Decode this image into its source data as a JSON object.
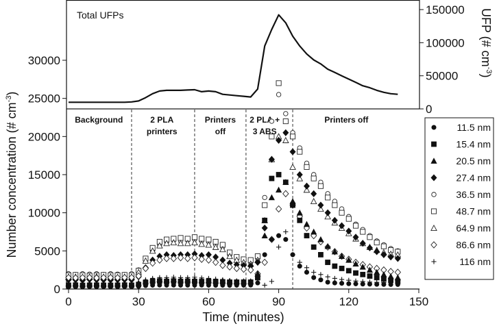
{
  "chart_data": [
    {
      "type": "line",
      "title": "Total UFPs",
      "ylabel_parts": [
        "UFP (# cm",
        "-3",
        ")"
      ],
      "ylim": [
        0,
        150000
      ],
      "yticks": [
        "0",
        "50000",
        "100000",
        "150000"
      ],
      "yticks_values": [
        0,
        50000,
        100000,
        150000
      ],
      "axis_side": "right",
      "x": [
        0,
        3,
        6,
        9,
        12,
        15,
        18,
        21,
        24,
        27,
        30,
        33,
        36,
        39,
        42,
        45,
        48,
        51,
        54,
        57,
        60,
        63,
        66,
        69,
        72,
        75,
        78,
        81,
        84,
        87,
        90,
        93,
        96,
        99,
        102,
        105,
        108,
        111,
        114,
        117,
        120,
        123,
        126,
        129,
        132,
        135,
        138,
        141
      ],
      "values": [
        10000,
        10000,
        10000,
        10000,
        10000,
        10000,
        10000,
        10000,
        10000,
        10500,
        12000,
        17000,
        23000,
        27000,
        28000,
        28000,
        28000,
        28500,
        29000,
        26000,
        27000,
        26000,
        22000,
        21000,
        20000,
        19000,
        18000,
        30000,
        95000,
        120000,
        142000,
        130000,
        110000,
        95000,
        83000,
        74000,
        68000,
        60000,
        55000,
        50000,
        45000,
        40000,
        35000,
        32000,
        28000,
        25000,
        23000,
        22000
      ]
    },
    {
      "type": "scatter",
      "xlabel": "Time (minutes)",
      "ylabel_parts": [
        "Number concentration (# cm",
        "-3",
        ")"
      ],
      "xlim": [
        0,
        150
      ],
      "ylim": [
        0,
        30000
      ],
      "xticks": [
        "0",
        "30",
        "60",
        "90",
        "120",
        "150"
      ],
      "xticks_values": [
        0,
        30,
        60,
        90,
        120,
        150
      ],
      "yticks": [
        "0",
        "5000",
        "10000",
        "15000",
        "20000",
        "25000",
        "30000"
      ],
      "yticks_values": [
        0,
        5000,
        10000,
        15000,
        20000,
        25000,
        30000
      ],
      "legend_position": "right",
      "phases": [
        {
          "label_lines": [
            "Background"
          ],
          "center": 13
        },
        {
          "label_lines": [
            "2 PLA",
            "printers"
          ],
          "center": 40
        },
        {
          "label_lines": [
            "Printers",
            "off"
          ],
          "center": 65
        },
        {
          "label_lines": [
            "2 PLA +",
            "3 ABS"
          ],
          "center": 84
        },
        {
          "label_lines": [
            "Printers off"
          ],
          "center": 119
        }
      ],
      "phase_boundaries": [
        27,
        54,
        76,
        96
      ],
      "x": [
        0,
        3,
        6,
        9,
        12,
        15,
        18,
        21,
        24,
        27,
        30,
        33,
        36,
        39,
        42,
        45,
        48,
        51,
        54,
        57,
        60,
        63,
        66,
        69,
        72,
        75,
        78,
        81,
        84,
        87,
        90,
        93,
        96,
        99,
        102,
        105,
        108,
        111,
        114,
        117,
        120,
        123,
        126,
        129,
        132,
        135,
        138,
        141
      ],
      "series": [
        {
          "name": "11.5 nm",
          "marker": "filled-circle",
          "values": [
            300,
            300,
            280,
            320,
            300,
            310,
            290,
            300,
            320,
            300,
            350,
            450,
            500,
            520,
            500,
            520,
            500,
            510,
            500,
            520,
            500,
            490,
            500,
            480,
            500,
            500,
            520,
            800,
            4500,
            6500,
            7000,
            6500,
            4500,
            3000,
            2200,
            1500,
            1200,
            900,
            800,
            750,
            700,
            680,
            650,
            640,
            620,
            610,
            600,
            600
          ]
        },
        {
          "name": "15.4 nm",
          "marker": "filled-square",
          "values": [
            500,
            520,
            480,
            500,
            510,
            500,
            490,
            500,
            520,
            500,
            600,
            850,
            1000,
            1050,
            1000,
            1050,
            1000,
            1020,
            1000,
            980,
            1000,
            950,
            950,
            900,
            900,
            900,
            900,
            1500,
            9000,
            14500,
            15000,
            14000,
            11000,
            9000,
            7000,
            5500,
            4500,
            3500,
            3000,
            2700,
            2400,
            2100,
            1900,
            1700,
            1500,
            1300,
            1150,
            1000
          ]
        },
        {
          "name": "20.5 nm",
          "marker": "filled-triangle",
          "values": [
            700,
            720,
            680,
            700,
            710,
            700,
            690,
            700,
            720,
            700,
            800,
            1050,
            1200,
            1250,
            1200,
            1250,
            1200,
            1220,
            1200,
            1150,
            1150,
            1100,
            1100,
            1050,
            1000,
            1000,
            1000,
            2000,
            7000,
            12000,
            13000,
            14000,
            11500,
            10000,
            8500,
            7500,
            6500,
            5600,
            4900,
            4300,
            3800,
            3300,
            2900,
            2500,
            2200,
            1900,
            1650,
            1500
          ]
        },
        {
          "name": "27.4 nm",
          "marker": "filled-diamond",
          "values": [
            1200,
            1200,
            1150,
            1250,
            1200,
            1200,
            1180,
            1200,
            1220,
            1200,
            1600,
            2800,
            3800,
            4300,
            4500,
            4400,
            4500,
            4500,
            4600,
            4400,
            4500,
            4200,
            3800,
            3400,
            3200,
            3100,
            3000,
            3500,
            8000,
            17000,
            19500,
            20500,
            18000,
            15000,
            13500,
            12500,
            11000,
            10000,
            9000,
            8300,
            7600,
            6800,
            6000,
            5400,
            4900,
            4500,
            4200,
            4000
          ]
        },
        {
          "name": "36.5 nm",
          "marker": "open-circle",
          "values": [
            2000,
            1900,
            2000,
            1950,
            2000,
            1900,
            2000,
            1950,
            1900,
            2000,
            2500,
            3800,
            5000,
            5800,
            6200,
            6400,
            6300,
            6400,
            6500,
            6300,
            6200,
            5800,
            5500,
            4500,
            4000,
            3700,
            3500,
            4000,
            12000,
            22000,
            25500,
            23000,
            20500,
            18500,
            16500,
            15000,
            14000,
            12500,
            11500,
            10500,
            9500,
            8500,
            7800,
            7000,
            6300,
            5800,
            5300,
            5000
          ]
        },
        {
          "name": "48.7 nm",
          "marker": "open-square",
          "values": [
            1800,
            1850,
            1800,
            1750,
            1800,
            1850,
            1800,
            1800,
            1850,
            1800,
            2400,
            4000,
            5400,
            6200,
            6500,
            6600,
            6700,
            6600,
            6800,
            6600,
            6500,
            6200,
            5800,
            4800,
            4200,
            3900,
            3800,
            4300,
            11000,
            20000,
            27000,
            22000,
            20000,
            18000,
            16000,
            14500,
            13500,
            12000,
            11000,
            10000,
            9200,
            8300,
            7500,
            6800,
            6100,
            5600,
            5100,
            4900
          ]
        },
        {
          "name": "64.9 nm",
          "marker": "open-triangle",
          "values": [
            1600,
            1600,
            1550,
            1600,
            1650,
            1600,
            1600,
            1550,
            1600,
            1600,
            2200,
            3700,
            5000,
            5700,
            6000,
            6100,
            6000,
            6000,
            6100,
            5900,
            5800,
            5500,
            5200,
            4300,
            3800,
            3500,
            3300,
            3800,
            9000,
            17000,
            20000,
            19500,
            16000,
            14500,
            13000,
            11500,
            10500,
            9500,
            8700,
            8000,
            7300,
            6600,
            6000,
            5500,
            5100,
            4800,
            4600,
            4500
          ]
        },
        {
          "name": "86.6 nm",
          "marker": "open-diamond",
          "values": [
            1500,
            1450,
            1500,
            1500,
            1450,
            1500,
            1500,
            1480,
            1500,
            1500,
            1700,
            2700,
            3400,
            3800,
            4000,
            4000,
            4100,
            4000,
            4100,
            3900,
            3800,
            3500,
            3100,
            2900,
            2700,
            2600,
            2500,
            2000,
            3500,
            6500,
            10500,
            12500,
            11000,
            9500,
            8000,
            7000,
            6200,
            5500,
            4900,
            4300,
            3900,
            3500,
            3200,
            2900,
            2700,
            2500,
            2300,
            2200
          ]
        },
        {
          "name": "116 nm",
          "marker": "plus",
          "values": [
            400,
            420,
            380,
            400,
            410,
            400,
            390,
            400,
            420,
            400,
            800,
            1200,
            1400,
            1500,
            1500,
            1550,
            1500,
            1500,
            1550,
            1450,
            1400,
            1300,
            1200,
            1100,
            1050,
            1000,
            1000,
            1200,
            500,
            1000,
            5500,
            7500,
            4500,
            3500,
            2800,
            2200,
            1900,
            1600,
            1400,
            1250,
            1150,
            1050,
            980,
            920,
            880,
            850,
            820,
            800
          ]
        }
      ]
    }
  ]
}
